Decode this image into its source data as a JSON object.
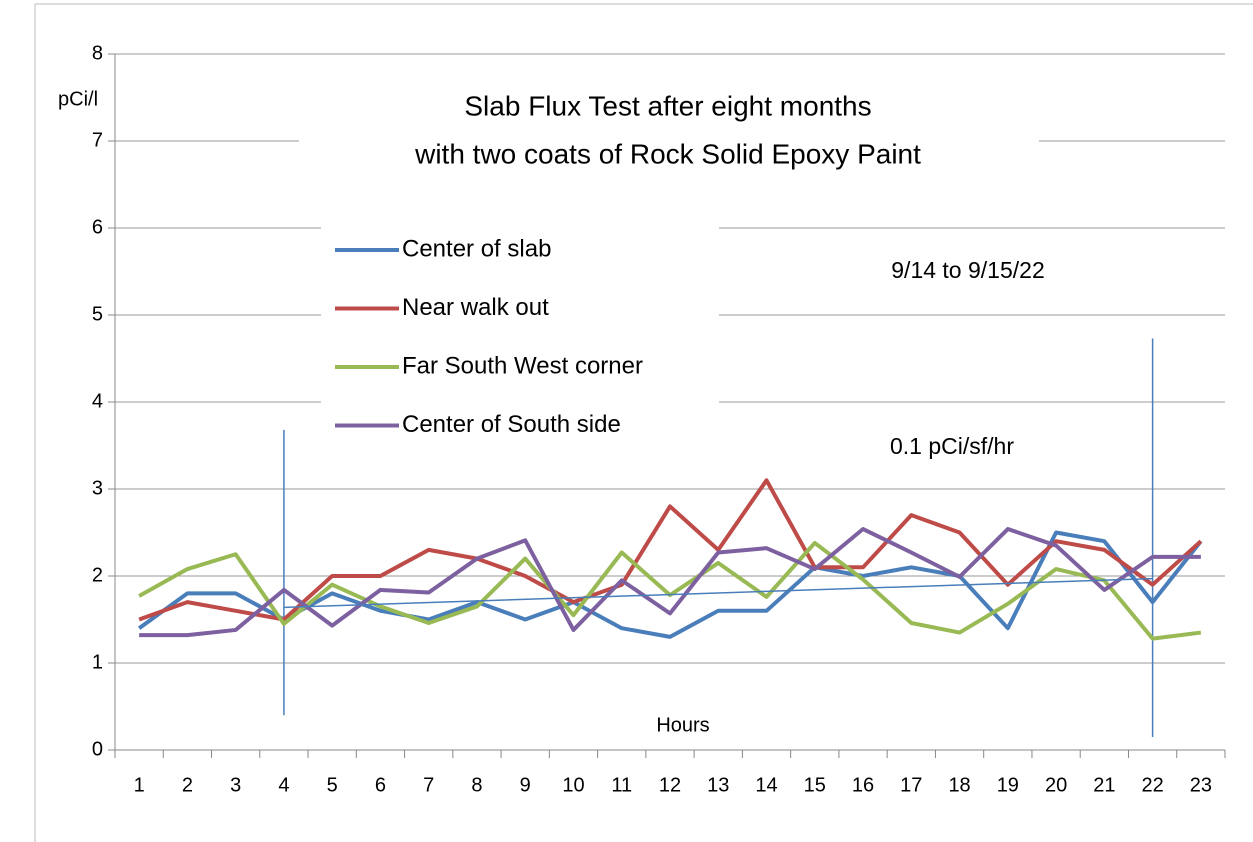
{
  "chart_data": {
    "type": "line",
    "title": [
      "Slab Flux Test after eight months",
      "with two coats of Rock Solid Epoxy Paint"
    ],
    "y_label": "pCi/l",
    "x_label": "Hours",
    "annotations": [
      "9/14 to 9/15/22",
      "0.1 pCi/sf/hr"
    ],
    "categories": [
      1,
      2,
      3,
      4,
      5,
      6,
      7,
      8,
      9,
      10,
      11,
      12,
      13,
      14,
      15,
      16,
      17,
      18,
      19,
      20,
      21,
      22,
      23
    ],
    "ylim": [
      0,
      8
    ],
    "yticks": [
      0,
      1,
      2,
      3,
      4,
      5,
      6,
      7,
      8
    ],
    "grid": true,
    "series": [
      {
        "name": "Center of slab",
        "color": "#4a7ebb",
        "values": [
          1.4,
          1.8,
          1.8,
          1.5,
          1.8,
          1.6,
          1.5,
          1.7,
          1.5,
          1.7,
          1.4,
          1.3,
          1.6,
          1.6,
          2.1,
          2.0,
          2.1,
          2.0,
          1.4,
          2.5,
          2.4,
          1.7,
          2.4
        ]
      },
      {
        "name": "Near walk out",
        "color": "#be4b48",
        "values": [
          1.5,
          1.7,
          1.6,
          1.5,
          2.0,
          2.0,
          2.3,
          2.2,
          2.0,
          1.7,
          1.9,
          2.8,
          2.3,
          3.1,
          2.1,
          2.1,
          2.7,
          2.5,
          1.9,
          2.4,
          2.3,
          1.9,
          2.4
        ]
      },
      {
        "name": "Far South  West corner",
        "color": "#98b954",
        "values": [
          1.77,
          2.08,
          2.25,
          1.45,
          1.9,
          1.65,
          1.46,
          1.65,
          2.2,
          1.55,
          2.27,
          1.78,
          2.15,
          1.76,
          2.38,
          1.96,
          1.46,
          1.35,
          1.68,
          2.08,
          1.95,
          1.28,
          1.35
        ]
      },
      {
        "name": "Center of South side",
        "color": "#7d60a0",
        "values": [
          1.32,
          1.32,
          1.38,
          1.84,
          1.43,
          1.84,
          1.81,
          2.2,
          2.41,
          1.38,
          1.95,
          1.57,
          2.27,
          2.32,
          2.08,
          2.54,
          2.27,
          1.99,
          2.54,
          2.35,
          1.84,
          2.22,
          2.22
        ]
      }
    ],
    "trendline": {
      "color": "#4a7ebb",
      "x": [
        4,
        22
      ],
      "values": [
        1.64,
        1.97
      ]
    },
    "markers": [
      {
        "color": "#4a7ebb",
        "x": 4,
        "y": [
          0.4,
          3.68
        ]
      },
      {
        "color": "#4a7ebb",
        "x": 22,
        "y": [
          0.15,
          4.73
        ]
      }
    ]
  }
}
